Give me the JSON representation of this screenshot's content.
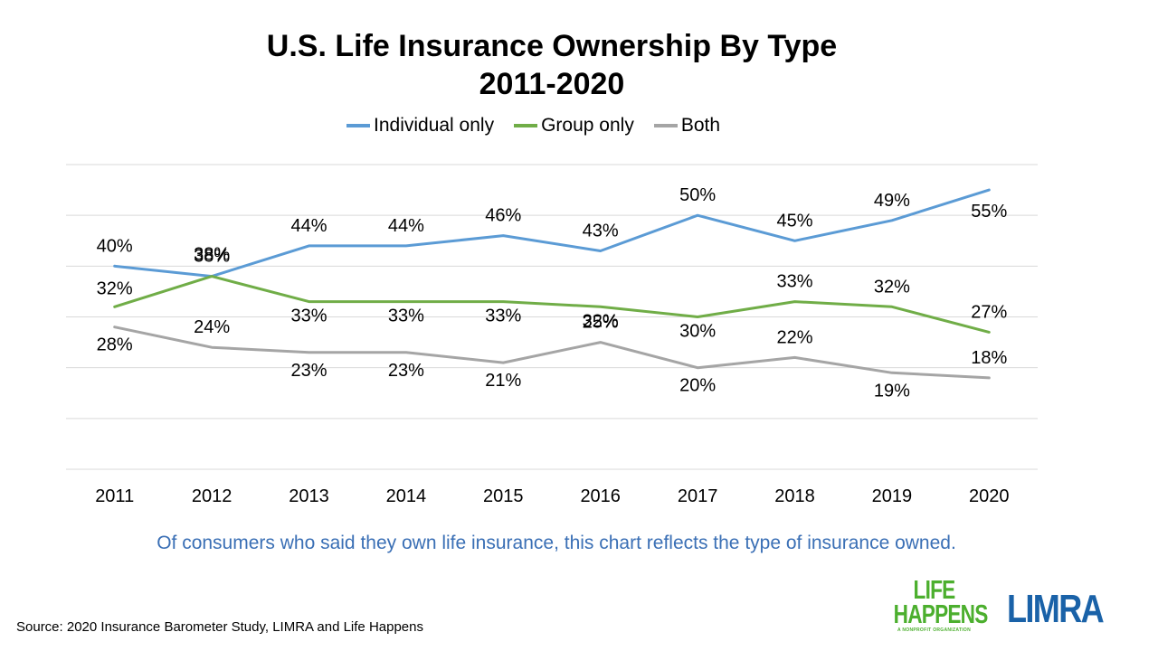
{
  "chart_data": {
    "type": "line",
    "title": "U.S. Life Insurance Ownership By Type",
    "subtitle": "2011-2020",
    "categories": [
      "2011",
      "2012",
      "2013",
      "2014",
      "2015",
      "2016",
      "2017",
      "2018",
      "2019",
      "2020"
    ],
    "series": [
      {
        "name": "Individual only",
        "color": "#5b9bd5",
        "values": [
          40,
          38,
          44,
          44,
          46,
          43,
          50,
          45,
          49,
          55
        ]
      },
      {
        "name": "Group only",
        "color": "#70ad47",
        "values": [
          32,
          38,
          33,
          33,
          33,
          32,
          30,
          33,
          32,
          27
        ]
      },
      {
        "name": "Both",
        "color": "#a5a5a5",
        "values": [
          28,
          24,
          23,
          23,
          21,
          25,
          20,
          22,
          19,
          18
        ]
      }
    ],
    "data_labels": [
      [
        "40%",
        "38%",
        "44%",
        "44%",
        "46%",
        "43%",
        "50%",
        "45%",
        "49%",
        "55%"
      ],
      [
        "32%",
        "38%",
        "33%",
        "33%",
        "33%",
        "32%",
        "30%",
        "33%",
        "32%",
        "27%"
      ],
      [
        "28%",
        "24%",
        "23%",
        "23%",
        "21%",
        "25%",
        "20%",
        "22%",
        "19%",
        "18%"
      ]
    ],
    "ylim": [
      0,
      60
    ],
    "grid": true,
    "legend": "top",
    "xlabel": "",
    "ylabel": ""
  },
  "caption": "Of consumers who said they own life insurance, this chart reflects the type of insurance owned.",
  "source": "Source: 2020 Insurance  Barometer Study, LIMRA and Life Happens",
  "logos": {
    "life_happens": {
      "line1": "LIFE",
      "line2": "HAPPENS",
      "tagline": "A NONPROFIT ORGANIZATION",
      "color": "#4caf2e"
    },
    "limra": {
      "text": "LIMRA",
      "color": "#1a62a8"
    }
  },
  "colors": {
    "caption": "#3a6fb5"
  }
}
